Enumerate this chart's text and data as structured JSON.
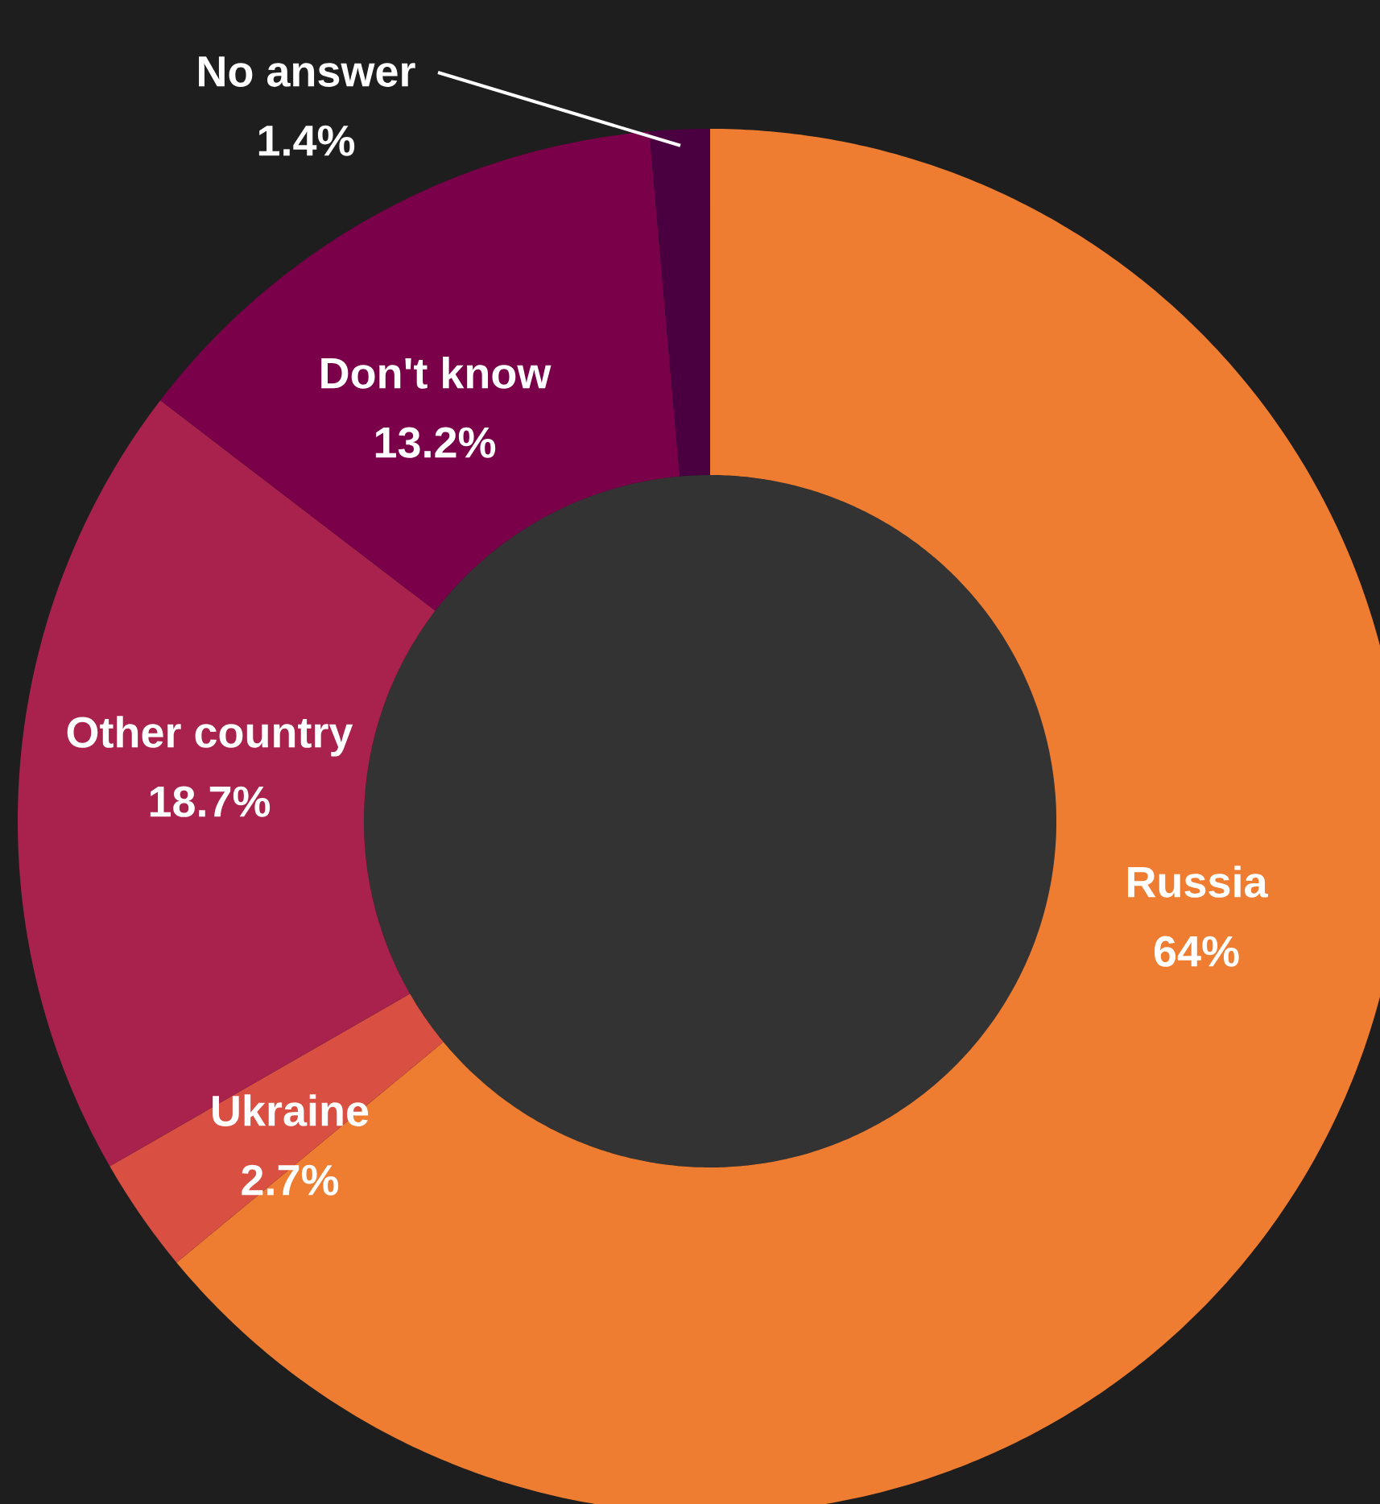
{
  "chart_data": {
    "type": "donut",
    "categories": [
      "Russia",
      "Ukraine",
      "Other country",
      "Don't know",
      "No answer"
    ],
    "values": [
      64,
      2.7,
      18.7,
      13.2,
      1.4
    ],
    "value_labels": [
      "64%",
      "2.7%",
      "18.7%",
      "13.2%",
      "1.4%"
    ],
    "colors": [
      "#ef7d31",
      "#d94f42",
      "#a8224d",
      "#7a0049",
      "#4a0040"
    ]
  }
}
